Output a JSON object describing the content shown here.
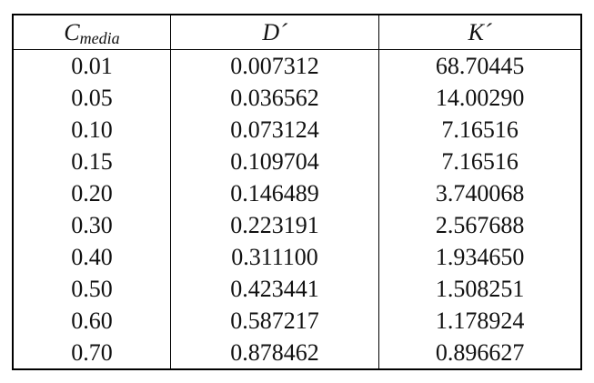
{
  "table": {
    "header": [
      {
        "text": "C",
        "sub": "media"
      },
      "D´",
      "K´"
    ],
    "rows": [
      [
        "0.01",
        "0.007312",
        "68.70445"
      ],
      [
        "0.05",
        "0.036562",
        "14.00290"
      ],
      [
        "0.10",
        "0.073124",
        "7.16516"
      ],
      [
        "0.15",
        "0.109704",
        "7.16516"
      ],
      [
        "0.20",
        "0.146489",
        "3.740068"
      ],
      [
        "0.30",
        "0.223191",
        "2.567688"
      ],
      [
        "0.40",
        "0.311100",
        "1.934650"
      ],
      [
        "0.50",
        "0.423441",
        "1.508251"
      ],
      [
        "0.60",
        "0.587217",
        "1.178924"
      ],
      [
        "0.70",
        "0.878462",
        "0.896627"
      ]
    ]
  }
}
